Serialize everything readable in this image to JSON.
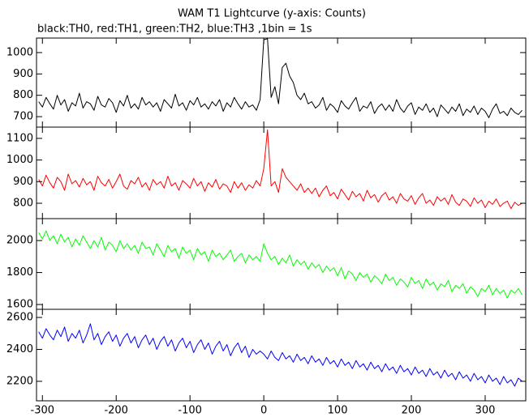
{
  "chart_data": {
    "type": "line",
    "title": "WAM T1 Lightcurve (y-axis: Counts)",
    "subtitle": "black:TH0, red:TH1, green:TH2, blue:TH3 ,1bin = 1s",
    "xlim": [
      -308,
      355
    ],
    "xticks": [
      -300,
      -200,
      -100,
      0,
      100,
      200,
      300
    ],
    "x": [
      -305,
      -300,
      -295,
      -290,
      -285,
      -280,
      -275,
      -270,
      -265,
      -260,
      -255,
      -250,
      -245,
      -240,
      -235,
      -230,
      -225,
      -220,
      -215,
      -210,
      -205,
      -200,
      -195,
      -190,
      -185,
      -180,
      -175,
      -170,
      -165,
      -160,
      -155,
      -150,
      -145,
      -140,
      -135,
      -130,
      -125,
      -120,
      -115,
      -110,
      -105,
      -100,
      -95,
      -90,
      -85,
      -80,
      -75,
      -70,
      -65,
      -60,
      -55,
      -50,
      -45,
      -40,
      -35,
      -30,
      -25,
      -20,
      -15,
      -10,
      -5,
      0,
      5,
      10,
      15,
      20,
      25,
      30,
      35,
      40,
      45,
      50,
      55,
      60,
      65,
      70,
      75,
      80,
      85,
      90,
      95,
      100,
      105,
      110,
      115,
      120,
      125,
      130,
      135,
      140,
      145,
      150,
      155,
      160,
      165,
      170,
      175,
      180,
      185,
      190,
      195,
      200,
      205,
      210,
      215,
      220,
      225,
      230,
      235,
      240,
      245,
      250,
      255,
      260,
      265,
      270,
      275,
      280,
      285,
      290,
      295,
      300,
      305,
      310,
      315,
      320,
      325,
      330,
      335,
      340,
      345,
      350
    ],
    "series": [
      {
        "color": "#000000",
        "ylim": [
          651,
          1068
        ],
        "yticks": [
          700,
          800,
          900,
          1000
        ],
        "values": [
          770,
          745,
          790,
          760,
          735,
          800,
          755,
          780,
          725,
          765,
          750,
          810,
          740,
          770,
          760,
          730,
          795,
          755,
          745,
          785,
          765,
          720,
          775,
          750,
          800,
          740,
          760,
          735,
          790,
          755,
          770,
          745,
          765,
          725,
          780,
          760,
          740,
          805,
          750,
          765,
          730,
          775,
          755,
          790,
          745,
          760,
          735,
          770,
          750,
          780,
          725,
          765,
          745,
          790,
          760,
          735,
          770,
          745,
          755,
          730,
          780,
          1060,
          1065,
          790,
          840,
          760,
          930,
          950,
          890,
          860,
          800,
          780,
          810,
          760,
          770,
          740,
          755,
          790,
          730,
          760,
          745,
          720,
          775,
          750,
          735,
          765,
          790,
          725,
          750,
          740,
          770,
          715,
          745,
          760,
          730,
          755,
          725,
          780,
          740,
          720,
          750,
          765,
          710,
          745,
          730,
          760,
          720,
          740,
          700,
          755,
          735,
          715,
          745,
          725,
          760,
          705,
          735,
          720,
          750,
          710,
          740,
          725,
          695,
          735,
          760,
          715,
          725,
          705,
          740,
          720,
          710,
          730
        ]
      },
      {
        "color": "#ff0000",
        "ylim": [
          729,
          1152
        ],
        "yticks": [
          800,
          900,
          1000,
          1100
        ],
        "values": [
          910,
          880,
          930,
          895,
          870,
          920,
          900,
          860,
          935,
          890,
          905,
          875,
          915,
          885,
          900,
          860,
          925,
          895,
          880,
          910,
          870,
          900,
          935,
          880,
          865,
          905,
          890,
          920,
          875,
          895,
          860,
          910,
          885,
          900,
          870,
          925,
          880,
          895,
          860,
          905,
          890,
          870,
          915,
          880,
          900,
          855,
          895,
          875,
          910,
          865,
          890,
          880,
          850,
          900,
          870,
          895,
          860,
          885,
          870,
          905,
          880,
          960,
          1140,
          880,
          900,
          850,
          960,
          920,
          900,
          880,
          860,
          890,
          850,
          870,
          845,
          870,
          830,
          860,
          880,
          835,
          850,
          820,
          865,
          840,
          815,
          855,
          830,
          845,
          810,
          860,
          825,
          840,
          805,
          835,
          850,
          815,
          830,
          800,
          845,
          820,
          810,
          835,
          795,
          825,
          845,
          800,
          815,
          790,
          830,
          810,
          825,
          795,
          840,
          805,
          790,
          820,
          810,
          785,
          825,
          800,
          815,
          780,
          810,
          795,
          820,
          785,
          800,
          810,
          775,
          805,
          790,
          800
        ]
      },
      {
        "color": "#00ff00",
        "ylim": [
          1570,
          2137
        ],
        "yticks": [
          1600,
          1800,
          2000
        ],
        "values": [
          2050,
          2010,
          2060,
          2000,
          2030,
          1980,
          2040,
          1990,
          2020,
          1960,
          2010,
          1970,
          2030,
          1990,
          1950,
          2000,
          1960,
          2020,
          1940,
          1990,
          1970,
          1930,
          2000,
          1950,
          1980,
          1940,
          1970,
          1920,
          1990,
          1950,
          1960,
          1910,
          1980,
          1940,
          1900,
          1970,
          1930,
          1950,
          1890,
          1960,
          1920,
          1940,
          1880,
          1950,
          1910,
          1930,
          1870,
          1940,
          1900,
          1920,
          1880,
          1910,
          1940,
          1870,
          1900,
          1920,
          1860,
          1910,
          1880,
          1900,
          1870,
          1980,
          1920,
          1880,
          1900,
          1850,
          1890,
          1860,
          1910,
          1840,
          1880,
          1850,
          1870,
          1820,
          1860,
          1830,
          1850,
          1800,
          1840,
          1810,
          1830,
          1780,
          1830,
          1760,
          1810,
          1790,
          1750,
          1800,
          1770,
          1790,
          1740,
          1780,
          1760,
          1730,
          1790,
          1750,
          1770,
          1720,
          1760,
          1740,
          1710,
          1770,
          1730,
          1750,
          1700,
          1760,
          1720,
          1740,
          1690,
          1730,
          1710,
          1750,
          1680,
          1720,
          1700,
          1730,
          1670,
          1710,
          1690,
          1650,
          1700,
          1680,
          1720,
          1660,
          1700,
          1670,
          1690,
          1640,
          1690,
          1670,
          1700,
          1660
        ]
      },
      {
        "color": "#0000ff",
        "ylim": [
          2078,
          2651
        ],
        "yticks": [
          2200,
          2400,
          2600
        ],
        "values": [
          2510,
          2470,
          2530,
          2490,
          2460,
          2520,
          2480,
          2540,
          2450,
          2500,
          2470,
          2520,
          2440,
          2490,
          2560,
          2460,
          2500,
          2430,
          2480,
          2510,
          2450,
          2490,
          2420,
          2470,
          2500,
          2440,
          2480,
          2410,
          2460,
          2490,
          2430,
          2470,
          2400,
          2450,
          2480,
          2420,
          2460,
          2390,
          2440,
          2470,
          2410,
          2450,
          2380,
          2430,
          2460,
          2400,
          2440,
          2370,
          2420,
          2450,
          2390,
          2430,
          2360,
          2410,
          2440,
          2380,
          2420,
          2350,
          2400,
          2370,
          2390,
          2370,
          2340,
          2390,
          2350,
          2330,
          2380,
          2340,
          2360,
          2320,
          2370,
          2330,
          2350,
          2310,
          2360,
          2320,
          2340,
          2300,
          2350,
          2310,
          2330,
          2290,
          2340,
          2300,
          2320,
          2280,
          2330,
          2290,
          2310,
          2270,
          2320,
          2280,
          2300,
          2260,
          2310,
          2270,
          2290,
          2250,
          2300,
          2260,
          2280,
          2240,
          2290,
          2250,
          2270,
          2230,
          2280,
          2240,
          2260,
          2220,
          2270,
          2230,
          2250,
          2210,
          2260,
          2220,
          2240,
          2200,
          2250,
          2210,
          2230,
          2190,
          2240,
          2200,
          2220,
          2180,
          2230,
          2190,
          2210,
          2170,
          2220,
          2200
        ]
      }
    ]
  }
}
